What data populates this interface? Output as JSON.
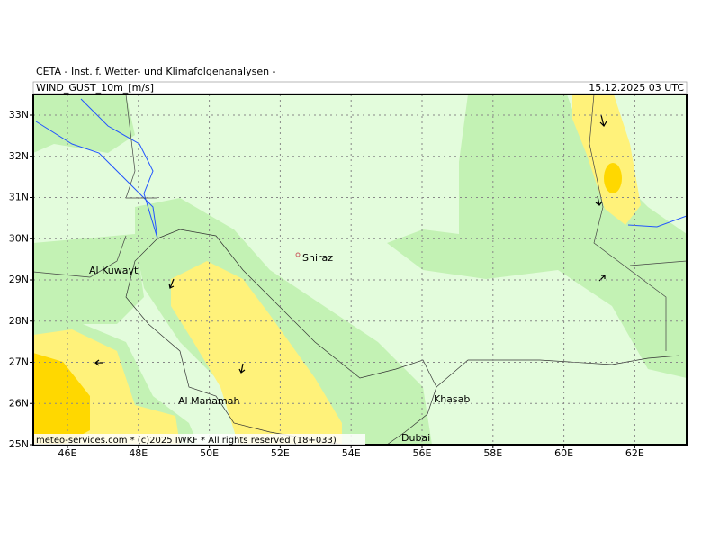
{
  "header": "CETA - Inst. f. Wetter- und Klimafolgenanalysen -",
  "title": "WIND_GUST_10m_[m/s]",
  "valid_time": "15.12.2025 03 UTC",
  "lat_labels": [
    "33N",
    "32N",
    "31N",
    "30N",
    "29N",
    "28N",
    "27N",
    "26N",
    "25N"
  ],
  "lon_labels": [
    "46E",
    "48E",
    "50E",
    "52E",
    "54E",
    "56E",
    "58E",
    "60E",
    "62E"
  ],
  "places": [
    "Shiraz",
    "Al Kuwayt",
    "Al Manamah",
    "Khasab",
    "Dubai"
  ],
  "footer": "meteo-services.com * (c)2025 IWKF * All rights reserved (18+033)"
}
